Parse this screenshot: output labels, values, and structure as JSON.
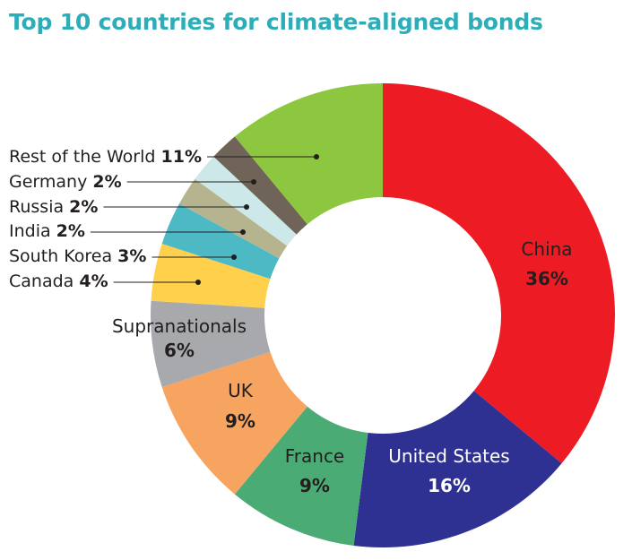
{
  "chart_data": {
    "type": "pie",
    "title": "Top 10 countries for climate-aligned bonds",
    "hole": "donut",
    "legend": "none",
    "slices": [
      {
        "name": "China",
        "value": 36,
        "label": "36%",
        "color": "#ed1c24"
      },
      {
        "name": "United States",
        "value": 16,
        "label": "16%",
        "color": "#2e3192"
      },
      {
        "name": "France",
        "value": 9,
        "label": "9%",
        "color": "#4aab74"
      },
      {
        "name": "UK",
        "value": 9,
        "label": "9%",
        "color": "#f7a461"
      },
      {
        "name": "Supranationals",
        "value": 6,
        "label": "6%",
        "color": "#a7a9ac"
      },
      {
        "name": "Canada",
        "value": 4,
        "label": "4%",
        "color": "#ffd04b"
      },
      {
        "name": "South Korea",
        "value": 3,
        "label": "3%",
        "color": "#4cb9c5"
      },
      {
        "name": "India",
        "value": 2,
        "label": "2%",
        "color": "#b6b48f"
      },
      {
        "name": "Russia",
        "value": 2,
        "label": "2%",
        "color": "#cde8e8"
      },
      {
        "name": "Germany",
        "value": 2,
        "label": "2%",
        "color": "#6f6457"
      },
      {
        "name": "Rest of the World",
        "value": 11,
        "label": "11%",
        "color": "#8dc63f"
      }
    ]
  },
  "colors": {
    "title": "#2cadb8",
    "text": "#231f20",
    "on_dark_text": "#ffffff",
    "leader_line": "#231f20"
  }
}
